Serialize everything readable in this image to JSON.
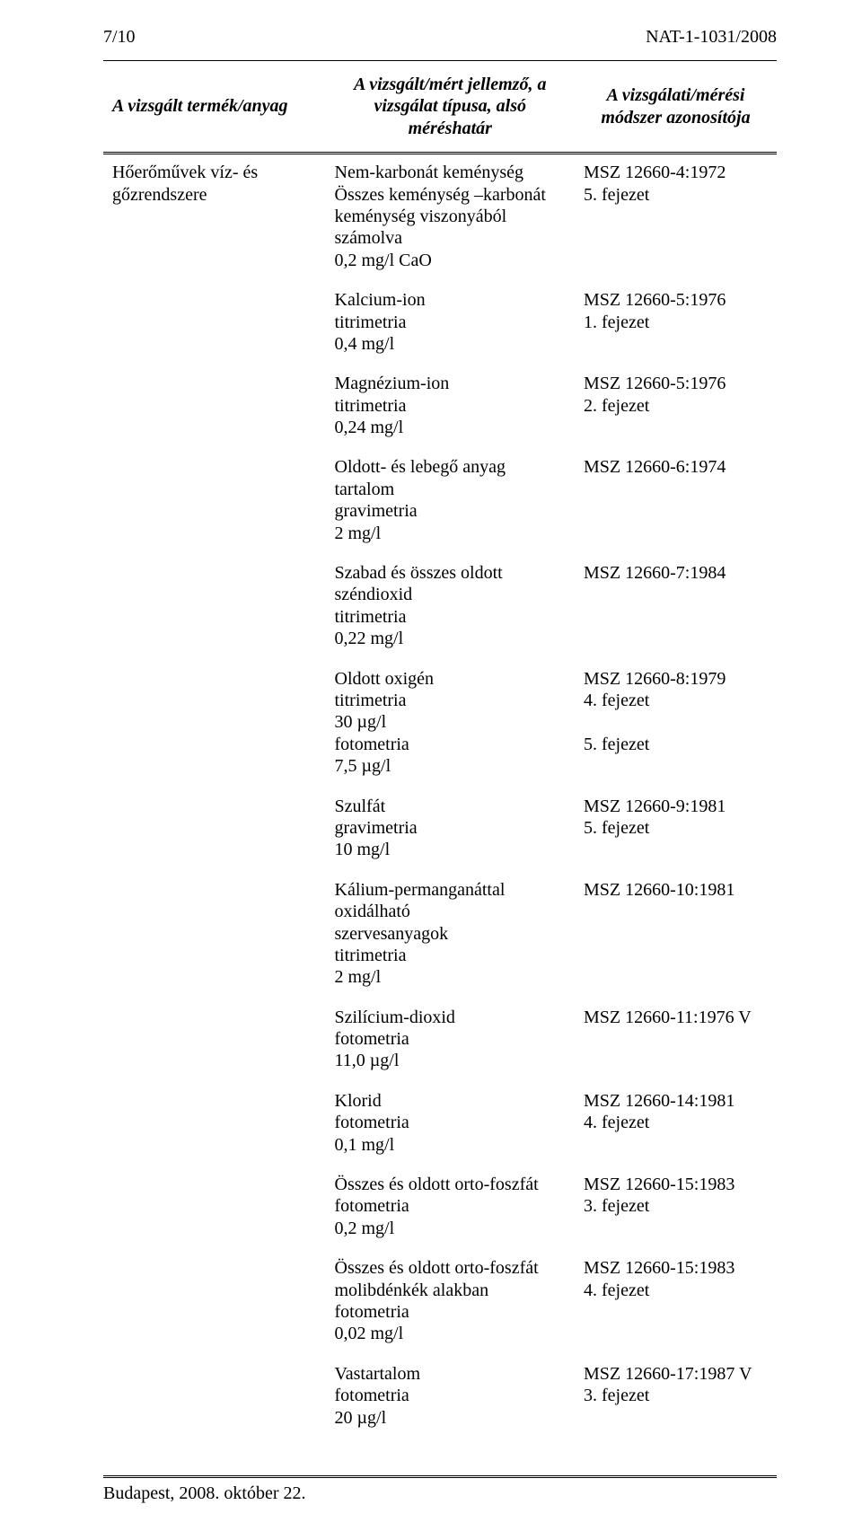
{
  "header": {
    "page_no": "7/10",
    "doc_id": "NAT-1-1031/2008"
  },
  "table": {
    "columns": {
      "c1": "A vizsgált termék/anyag",
      "c2_l1": "A vizsgált/mért jellemző,",
      "c2_l2": "a vizsgálat típusa,",
      "c2_l3": "alsó méréshatár",
      "c3_l1": "A vizsgálati/mérési módszer",
      "c3_l2": "azonosítója"
    },
    "product": "Hőerőművek víz- és gőzrendszere",
    "rows": [
      {
        "param": [
          "Nem-karbonát keménység",
          "Összes keménység –karbonát",
          "keménység viszonyából számolva",
          "0,2 mg/l CaO"
        ],
        "method": [
          "MSZ 12660-4:1972",
          "5. fejezet"
        ]
      },
      {
        "param": [
          "Kalcium-ion",
          "titrimetria",
          "0,4 mg/l"
        ],
        "method": [
          "MSZ 12660-5:1976",
          "1. fejezet"
        ]
      },
      {
        "param": [
          "Magnézium-ion",
          "titrimetria",
          "0,24 mg/l"
        ],
        "method": [
          "MSZ 12660-5:1976",
          "2. fejezet"
        ]
      },
      {
        "param": [
          "Oldott- és lebegő anyag tartalom",
          "gravimetria",
          "2 mg/l"
        ],
        "method": [
          "MSZ 12660-6:1974"
        ]
      },
      {
        "param": [
          "Szabad és összes oldott széndioxid",
          "titrimetria",
          "0,22 mg/l"
        ],
        "method": [
          "MSZ 12660-7:1984"
        ]
      },
      {
        "param": [
          "Oldott oxigén",
          "titrimetria",
          "30 µg/l",
          "fotometria",
          "7,5 µg/l"
        ],
        "method": [
          "MSZ 12660-8:1979",
          "4. fejezet",
          "",
          "5. fejezet"
        ]
      },
      {
        "param": [
          "Szulfát",
          "gravimetria",
          "10 mg/l"
        ],
        "method": [
          "MSZ 12660-9:1981",
          "5. fejezet"
        ]
      },
      {
        "param": [
          "Kálium-permanganáttal oxidálható",
          "szervesanyagok",
          "titrimetria",
          "2 mg/l"
        ],
        "method": [
          "MSZ 12660-10:1981"
        ]
      },
      {
        "param": [
          "Szilícium-dioxid",
          "fotometria",
          "11,0 µg/l"
        ],
        "method": [
          "MSZ 12660-11:1976  V"
        ]
      },
      {
        "param": [
          "Klorid",
          "fotometria",
          "0,1 mg/l"
        ],
        "method": [
          "MSZ 12660-14:1981",
          "4. fejezet"
        ]
      },
      {
        "param": [
          "Összes és oldott orto-foszfát",
          "fotometria",
          "0,2 mg/l"
        ],
        "method": [
          "MSZ 12660-15:1983",
          "3. fejezet"
        ]
      },
      {
        "param": [
          "Összes és oldott orto-foszfát",
          "molibdénkék alakban",
          "fotometria",
          "0,02 mg/l"
        ],
        "method": [
          "MSZ 12660-15:1983",
          "4. fejezet"
        ]
      },
      {
        "param": [
          "Vastartalom",
          "fotometria",
          "20 µg/l"
        ],
        "method": [
          "MSZ 12660-17:1987  V",
          "3. fejezet"
        ]
      }
    ]
  },
  "footer": "Budapest, 2008. október 22."
}
